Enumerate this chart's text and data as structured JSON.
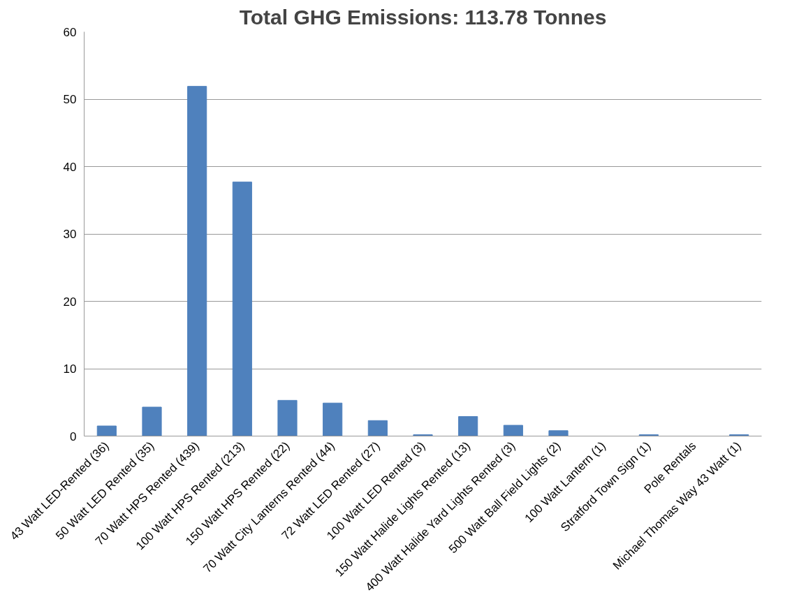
{
  "chart_data": {
    "type": "bar",
    "title": "Total GHG Emissions: 113.78 Tonnes",
    "categories": [
      "43 Watt LED-Rented (36)",
      "50 Watt LED Rented (35)",
      "70 Watt HPS Rented (439)",
      "100 Watt HPS Rented (213)",
      "150 Watt HPS Rented (22)",
      "70 Watt City Lanterns Rented (44)",
      "72 Watt LED Rented (27)",
      "100 Watt LED Rented (3)",
      "150 Watt Halide Lights Rented (13)",
      "400 Watt Halide Yard Lights Rented (3)",
      "500 Watt Ball Field Lights (2)",
      "100 Watt Lantern (1)",
      "Stratford Town Sign (1)",
      "Pole Rentals",
      "Michael Thomas Way 43 Watt (1)"
    ],
    "values": [
      1.5,
      4.3,
      51.9,
      37.7,
      5.3,
      4.9,
      2.3,
      0.2,
      2.9,
      1.6,
      0.8,
      0,
      0.2,
      0,
      0.2
    ],
    "color": "#4f81bd",
    "ylim": [
      0,
      60
    ],
    "yticks": [
      0,
      10,
      20,
      30,
      40,
      50,
      60
    ],
    "grid": "y"
  }
}
